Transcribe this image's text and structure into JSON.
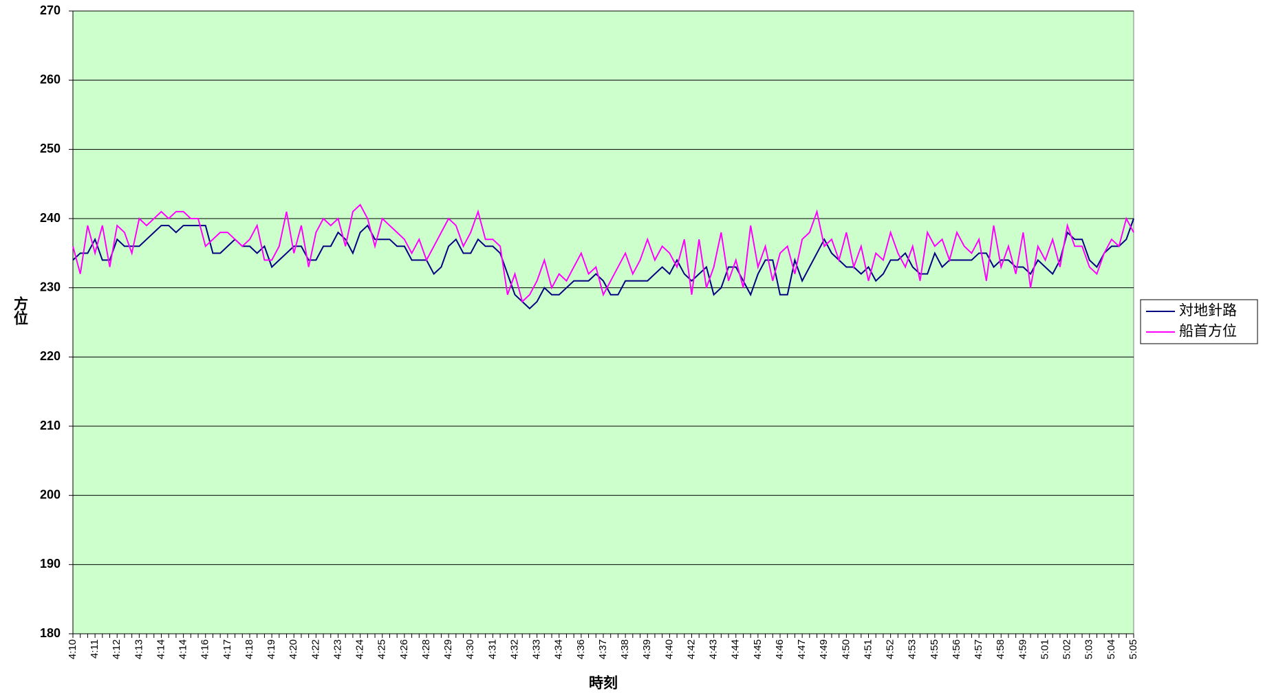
{
  "chart_data": {
    "type": "line",
    "y_label": "方位",
    "x_label": "時刻",
    "categories": [
      "4:10",
      null,
      null,
      "4:11",
      null,
      null,
      "4:12",
      null,
      null,
      "4:13",
      null,
      null,
      "4:14",
      null,
      null,
      "4:14",
      null,
      null,
      "4:16",
      null,
      null,
      "4:17",
      null,
      null,
      "4:18",
      null,
      null,
      "4:19",
      null,
      null,
      "4:20",
      null,
      null,
      "4:22",
      null,
      null,
      "4:23",
      null,
      null,
      "4:24",
      null,
      null,
      "4:25",
      null,
      null,
      "4:26",
      null,
      null,
      "4:28",
      null,
      null,
      "4:29",
      null,
      null,
      "4:30",
      null,
      null,
      "4:31",
      null,
      null,
      "4:32",
      null,
      null,
      "4:33",
      null,
      null,
      "4:34",
      null,
      null,
      "4:36",
      null,
      null,
      "4:37",
      null,
      null,
      "4:38",
      null,
      null,
      "4:39",
      null,
      null,
      "4:40",
      null,
      null,
      "4:42",
      null,
      null,
      "4:43",
      null,
      null,
      "4:44",
      null,
      null,
      "4:45",
      null,
      null,
      "4:46",
      null,
      null,
      "4:47",
      null,
      null,
      "4:49",
      null,
      null,
      "4:50",
      null,
      null,
      "4:51",
      null,
      null,
      "4:52",
      null,
      null,
      "4:53",
      null,
      null,
      "4:55",
      null,
      null,
      "4:56",
      null,
      null,
      "4:57",
      null,
      null,
      "4:58",
      null,
      null,
      "4:59",
      null,
      null,
      "5:01",
      null,
      null,
      "5:02",
      null,
      null,
      "5:03",
      null,
      null,
      "5:04",
      null,
      null,
      "5:05"
    ],
    "series": [
      {
        "name": "対地針路",
        "color": "#000080",
        "values": [
          234,
          235,
          235,
          237,
          234,
          234,
          237,
          236,
          236,
          236,
          237,
          238,
          239,
          239,
          238,
          239,
          239,
          239,
          239,
          235,
          235,
          236,
          237,
          236,
          236,
          235,
          236,
          233,
          234,
          235,
          236,
          236,
          234,
          234,
          236,
          236,
          238,
          237,
          235,
          238,
          239,
          237,
          237,
          237,
          236,
          236,
          234,
          234,
          234,
          232,
          233,
          236,
          237,
          235,
          235,
          237,
          236,
          236,
          235,
          232,
          229,
          228,
          227,
          228,
          230,
          229,
          229,
          230,
          231,
          231,
          231,
          232,
          231,
          229,
          229,
          231,
          231,
          231,
          231,
          232,
          233,
          232,
          234,
          232,
          231,
          232,
          233,
          229,
          230,
          233,
          233,
          231,
          229,
          232,
          234,
          234,
          229,
          229,
          234,
          231,
          233,
          235,
          237,
          235,
          234,
          233,
          233,
          232,
          233,
          231,
          232,
          234,
          234,
          235,
          233,
          232,
          232,
          235,
          233,
          234,
          234,
          234,
          234,
          235,
          235,
          233,
          234,
          234,
          233,
          233,
          232,
          234,
          233,
          232,
          234,
          238,
          237,
          237,
          234,
          233,
          235,
          236,
          236,
          237,
          240
        ]
      },
      {
        "name": "船首方位",
        "color": "#ff00ff",
        "values": [
          236,
          232,
          239,
          235,
          239,
          233,
          239,
          238,
          235,
          240,
          239,
          240,
          241,
          240,
          241,
          241,
          240,
          240,
          236,
          237,
          238,
          238,
          237,
          236,
          237,
          239,
          234,
          234,
          236,
          241,
          235,
          239,
          233,
          238,
          240,
          239,
          240,
          236,
          241,
          242,
          240,
          236,
          240,
          239,
          238,
          237,
          235,
          237,
          234,
          236,
          238,
          240,
          239,
          236,
          238,
          241,
          237,
          237,
          236,
          229,
          232,
          228,
          229,
          231,
          234,
          230,
          232,
          231,
          233,
          235,
          232,
          233,
          229,
          231,
          233,
          235,
          232,
          234,
          237,
          234,
          236,
          235,
          233,
          237,
          229,
          237,
          230,
          233,
          238,
          231,
          234,
          230,
          239,
          233,
          236,
          231,
          235,
          236,
          232,
          237,
          238,
          241,
          236,
          237,
          234,
          238,
          233,
          236,
          231,
          235,
          234,
          238,
          235,
          233,
          236,
          231,
          238,
          236,
          237,
          234,
          238,
          236,
          235,
          237,
          231,
          239,
          233,
          236,
          232,
          238,
          230,
          236,
          234,
          237,
          233,
          239,
          236,
          236,
          233,
          232,
          235,
          237,
          236,
          240,
          238
        ]
      }
    ],
    "ylim": [
      180,
      270
    ],
    "yticks": [
      180,
      190,
      200,
      210,
      220,
      230,
      240,
      250,
      260,
      270
    ],
    "grid": true,
    "legend": "right",
    "background": "#ccffcc"
  }
}
